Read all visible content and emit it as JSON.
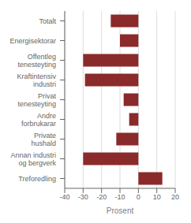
{
  "chart_data": {
    "type": "bar",
    "orientation": "horizontal",
    "categories": [
      "Totalt",
      "Energisektorar",
      "Offentleg\ntenesteyting",
      "Kraftintensiv\nindustri",
      "Privat\ntenesteyting",
      "Andre\nforbrukarar",
      "Private\nhushald",
      "Annan industri\nog bergverk",
      "Treforedling"
    ],
    "values": [
      -15,
      -10,
      -30,
      -29,
      -8,
      -5,
      -12,
      -30,
      13
    ],
    "color": "#8b2a2a",
    "xlim": [
      -40,
      20
    ],
    "xticks": [
      -40,
      -30,
      -20,
      -10,
      0,
      10,
      20
    ],
    "xlabel": "Prosent",
    "grid": true
  }
}
